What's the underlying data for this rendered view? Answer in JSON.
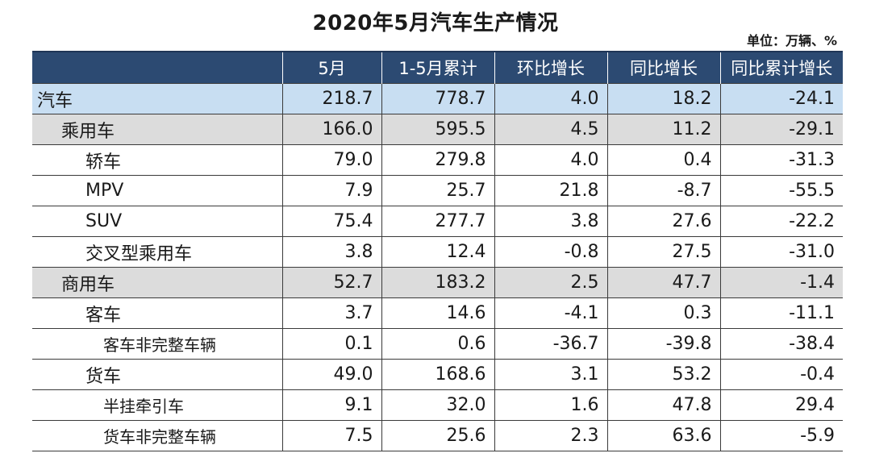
{
  "title": "2020年5月汽车生产情况",
  "unit": "单位：万辆、%",
  "headers": [
    "",
    "5月",
    "1-5月累计",
    "环比增长",
    "同比增长",
    "同比累计增长"
  ],
  "rows": [
    {
      "label": "汽车",
      "level": "top",
      "values": [
        "218.7",
        "778.7",
        "4.0",
        "18.2",
        "-24.1"
      ]
    },
    {
      "label": "乘用车",
      "level": "1",
      "values": [
        "166.0",
        "595.5",
        "4.5",
        "11.2",
        "-29.1"
      ]
    },
    {
      "label": "轿车",
      "level": "2",
      "values": [
        "79.0",
        "279.8",
        "4.0",
        "0.4",
        "-31.3"
      ]
    },
    {
      "label": "MPV",
      "level": "2",
      "values": [
        "7.9",
        "25.7",
        "21.8",
        "-8.7",
        "-55.5"
      ]
    },
    {
      "label": "SUV",
      "level": "2",
      "values": [
        "75.4",
        "277.7",
        "3.8",
        "27.6",
        "-22.2"
      ]
    },
    {
      "label": "交叉型乘用车",
      "level": "2",
      "values": [
        "3.8",
        "12.4",
        "-0.8",
        "27.5",
        "-31.0"
      ]
    },
    {
      "label": "商用车",
      "level": "1",
      "values": [
        "52.7",
        "183.2",
        "2.5",
        "47.7",
        "-1.4"
      ]
    },
    {
      "label": "客车",
      "level": "2",
      "values": [
        "3.7",
        "14.6",
        "-4.1",
        "0.3",
        "-11.1"
      ]
    },
    {
      "label": "客车非完整车辆",
      "level": "3",
      "values": [
        "0.1",
        "0.6",
        "-36.7",
        "-39.8",
        "-38.4"
      ]
    },
    {
      "label": "货车",
      "level": "2",
      "values": [
        "49.0",
        "168.6",
        "3.1",
        "53.2",
        "-0.4"
      ]
    },
    {
      "label": "半挂牵引车",
      "level": "3",
      "values": [
        "9.1",
        "32.0",
        "1.6",
        "47.8",
        "29.4"
      ]
    },
    {
      "label": "货车非完整车辆",
      "level": "3",
      "values": [
        "7.5",
        "25.6",
        "2.3",
        "63.6",
        "-5.9"
      ]
    }
  ],
  "colors": {
    "header_bg": "#2c4a72",
    "top_row_bg": "#c8def2",
    "category_row_bg": "#dcdcdc"
  }
}
